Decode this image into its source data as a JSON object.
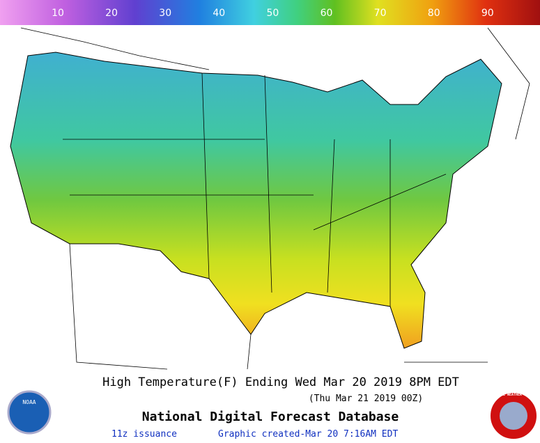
{
  "legend": {
    "ticks": [
      10,
      20,
      30,
      40,
      50,
      60,
      70,
      80,
      90
    ]
  },
  "footer": {
    "title": "High Temperature(F) Ending Wed Mar 20 2019  8PM EDT",
    "subtitle": "(Thu Mar 21 2019 00Z)",
    "product": "National Digital Forecast Database",
    "issuance": "11z issuance",
    "created": "Graphic created-Mar 20  7:16AM EDT"
  },
  "logos": {
    "left": "NOAA",
    "right": "NATIONAL WEATHER SERVICE"
  }
}
